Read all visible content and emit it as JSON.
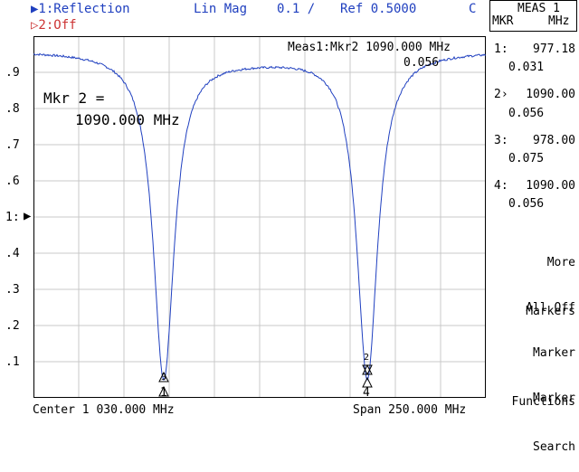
{
  "header": {
    "trace1_label": "▶1:Reflection",
    "format": "Lin Mag",
    "scale": "0.1 /",
    "ref": "Ref 0.5000",
    "flag": "C",
    "trace2_label": "▷2:Off"
  },
  "menu": {
    "title_line1": "MEAS 1",
    "title_line2_left": "MKR",
    "title_line2_right": "MHz",
    "readouts": [
      {
        "label": "1:",
        "freq": "977.18",
        "value": "0.031"
      },
      {
        "label": "2›",
        "freq": "1090.00",
        "value": "0.056"
      },
      {
        "label": "3:",
        "freq": "978.00",
        "value": "0.075"
      },
      {
        "label": "4:",
        "freq": "1090.00",
        "value": "0.056"
      }
    ],
    "softkeys": [
      {
        "line1": "More",
        "line2": "Markers"
      },
      {
        "line1": "All Off",
        "line2": ""
      },
      {
        "line1": "Marker",
        "line2": "Functions"
      },
      {
        "line1": "Marker",
        "line2": "Search"
      }
    ]
  },
  "plot": {
    "meas_label": "Meas1:Mkr2 1090.000 MHz",
    "meas_value": "0.056",
    "mkr_label": "Mkr 2 =",
    "mkr_freq": "1090.000 MHz",
    "y_ticks": [
      ".9",
      ".8",
      ".7",
      ".6",
      "1:",
      ".4",
      ".3",
      ".2",
      ".1"
    ],
    "ref_marker": "▶",
    "marker_numbers": [
      "1",
      "4",
      "3",
      "2"
    ],
    "colors": {
      "trace": "#2040c0",
      "grid": "#c8c8c8",
      "frame": "#000000"
    }
  },
  "footer": {
    "center": "Center 1 030.000 MHz",
    "span": "Span 250.000 MHz"
  }
}
